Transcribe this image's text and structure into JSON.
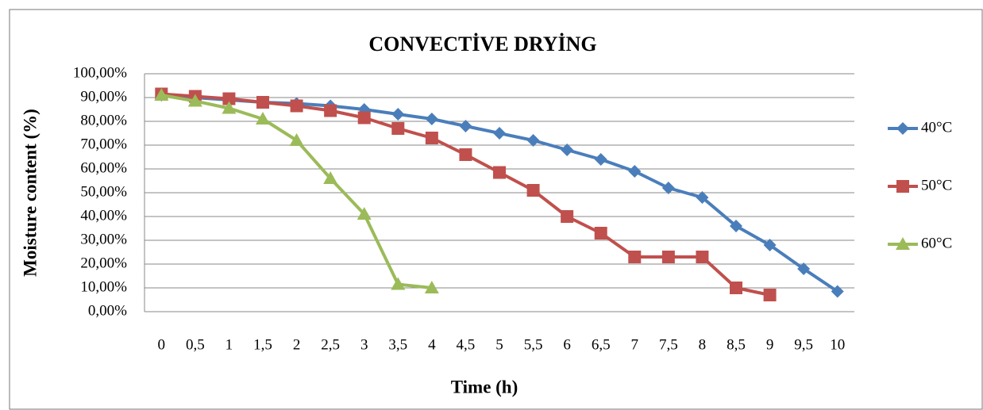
{
  "chart_data": {
    "type": "line",
    "title": "CONVECTİVE DRYİNG",
    "x_label": "Time (h)",
    "y_label": "Moisture content (%)",
    "categories": [
      "0",
      "0,5",
      "1",
      "1,5",
      "2",
      "2,5",
      "3",
      "3,5",
      "4",
      "4,5",
      "5",
      "5,5",
      "6",
      "6,5",
      "7",
      "7,5",
      "8",
      "8,5",
      "9",
      "9,5",
      "10"
    ],
    "series": [
      {
        "name": "40°C",
        "color": "#4a7ebb",
        "marker": "diamond",
        "values": [
          91,
          90,
          89,
          88,
          87.5,
          86.5,
          85,
          83,
          81,
          78,
          75,
          72,
          68,
          64,
          59,
          52,
          48,
          36,
          28,
          18,
          8.5
        ]
      },
      {
        "name": "50°C",
        "color": "#c0504d",
        "marker": "square",
        "values": [
          91.5,
          90.5,
          89.5,
          88,
          86.5,
          84.5,
          81.5,
          77,
          73,
          66,
          58.5,
          51,
          40,
          33,
          23,
          23,
          23,
          10,
          7,
          null,
          null
        ]
      },
      {
        "name": "60°C",
        "color": "#9bbb59",
        "marker": "triangle",
        "values": [
          91,
          88.5,
          85.5,
          81,
          72,
          56,
          41,
          11.5,
          10,
          null,
          null,
          null,
          null,
          null,
          null,
          null,
          null,
          null,
          null,
          null,
          null
        ]
      }
    ],
    "ylim": [
      0,
      100
    ],
    "yticks": [
      {
        "value": 0,
        "label": "0,00%"
      },
      {
        "value": 10,
        "label": "10,00%"
      },
      {
        "value": 20,
        "label": "20,00%"
      },
      {
        "value": 30,
        "label": "30,00%"
      },
      {
        "value": 40,
        "label": "40,00%"
      },
      {
        "value": 50,
        "label": "50,00%"
      },
      {
        "value": 60,
        "label": "60,00%"
      },
      {
        "value": 70,
        "label": "70,00%"
      },
      {
        "value": 80,
        "label": "80,00%"
      },
      {
        "value": 90,
        "label": "90,00%"
      },
      {
        "value": 100,
        "label": "100,00%"
      }
    ],
    "grid": true,
    "legend": "right"
  }
}
